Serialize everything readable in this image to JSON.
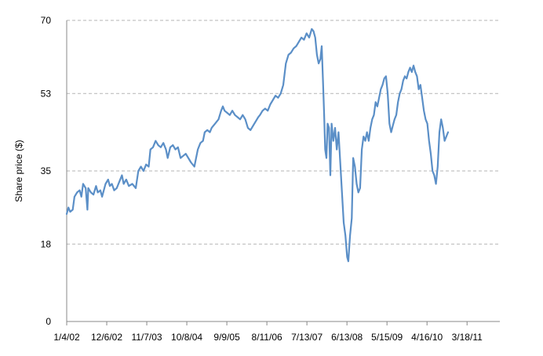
{
  "chart_data": {
    "type": "line",
    "title": "",
    "xlabel": "",
    "ylabel": "Share price ($)",
    "ylim": [
      0,
      70
    ],
    "y_ticks": [
      0,
      18,
      35,
      53,
      70
    ],
    "x_range": [
      0,
      2510
    ],
    "x_ticks": [
      {
        "x": 0,
        "label": "1/4/02"
      },
      {
        "x": 232,
        "label": "12/6/02"
      },
      {
        "x": 464,
        "label": "11/7/03"
      },
      {
        "x": 696,
        "label": "10/8/04"
      },
      {
        "x": 928,
        "label": "9/9/05"
      },
      {
        "x": 1160,
        "label": "8/11/06"
      },
      {
        "x": 1392,
        "label": "7/13/07"
      },
      {
        "x": 1624,
        "label": "6/13/08"
      },
      {
        "x": 1856,
        "label": "5/15/09"
      },
      {
        "x": 2088,
        "label": "4/16/10"
      },
      {
        "x": 2320,
        "label": "3/18/11"
      }
    ],
    "grid": "horizontal dashed",
    "legend": "none",
    "series": [
      {
        "color": "#5b8fc7",
        "points": [
          [
            0,
            25
          ],
          [
            10,
            26.5
          ],
          [
            20,
            25.5
          ],
          [
            35,
            26
          ],
          [
            45,
            29
          ],
          [
            60,
            30
          ],
          [
            75,
            30.5
          ],
          [
            85,
            29
          ],
          [
            95,
            32
          ],
          [
            110,
            31
          ],
          [
            120,
            26
          ],
          [
            125,
            31
          ],
          [
            140,
            30
          ],
          [
            155,
            29.5
          ],
          [
            170,
            31.5
          ],
          [
            180,
            30
          ],
          [
            195,
            30.5
          ],
          [
            205,
            29
          ],
          [
            225,
            32
          ],
          [
            240,
            33
          ],
          [
            250,
            31.5
          ],
          [
            262,
            32
          ],
          [
            275,
            30.5
          ],
          [
            290,
            31
          ],
          [
            305,
            32.5
          ],
          [
            320,
            34
          ],
          [
            330,
            32
          ],
          [
            345,
            33
          ],
          [
            360,
            31.5
          ],
          [
            380,
            32
          ],
          [
            400,
            31
          ],
          [
            415,
            35
          ],
          [
            430,
            36
          ],
          [
            445,
            35
          ],
          [
            460,
            36.5
          ],
          [
            475,
            36
          ],
          [
            485,
            40
          ],
          [
            500,
            40.5
          ],
          [
            515,
            42
          ],
          [
            530,
            41
          ],
          [
            545,
            40.5
          ],
          [
            560,
            41.5
          ],
          [
            575,
            40
          ],
          [
            585,
            38
          ],
          [
            600,
            40.5
          ],
          [
            615,
            41
          ],
          [
            630,
            40
          ],
          [
            645,
            40.5
          ],
          [
            660,
            38
          ],
          [
            675,
            38.5
          ],
          [
            690,
            39
          ],
          [
            705,
            38
          ],
          [
            720,
            37
          ],
          [
            740,
            36
          ],
          [
            750,
            38
          ],
          [
            760,
            40
          ],
          [
            775,
            41.5
          ],
          [
            790,
            42
          ],
          [
            800,
            44
          ],
          [
            815,
            44.5
          ],
          [
            830,
            44
          ],
          [
            840,
            45
          ],
          [
            860,
            46
          ],
          [
            880,
            47
          ],
          [
            895,
            49
          ],
          [
            905,
            50
          ],
          [
            915,
            49
          ],
          [
            930,
            48.5
          ],
          [
            945,
            48
          ],
          [
            960,
            49
          ],
          [
            975,
            48
          ],
          [
            990,
            47.5
          ],
          [
            1005,
            47
          ],
          [
            1020,
            48
          ],
          [
            1035,
            47
          ],
          [
            1050,
            45
          ],
          [
            1065,
            44.5
          ],
          [
            1080,
            45.5
          ],
          [
            1095,
            46.5
          ],
          [
            1110,
            47.5
          ],
          [
            1120,
            48
          ],
          [
            1135,
            49
          ],
          [
            1150,
            49.5
          ],
          [
            1165,
            49
          ],
          [
            1180,
            50.5
          ],
          [
            1195,
            51.5
          ],
          [
            1210,
            52.5
          ],
          [
            1225,
            52
          ],
          [
            1240,
            53
          ],
          [
            1255,
            55
          ],
          [
            1270,
            60
          ],
          [
            1285,
            62
          ],
          [
            1300,
            62.5
          ],
          [
            1315,
            63.5
          ],
          [
            1330,
            64
          ],
          [
            1345,
            65
          ],
          [
            1360,
            66
          ],
          [
            1375,
            65.5
          ],
          [
            1390,
            67
          ],
          [
            1405,
            66
          ],
          [
            1420,
            68
          ],
          [
            1430,
            67.5
          ],
          [
            1440,
            66
          ],
          [
            1450,
            62
          ],
          [
            1460,
            60
          ],
          [
            1470,
            61
          ],
          [
            1478,
            64
          ],
          [
            1485,
            56
          ],
          [
            1492,
            48
          ],
          [
            1498,
            40
          ],
          [
            1505,
            38
          ],
          [
            1512,
            46
          ],
          [
            1520,
            45
          ],
          [
            1528,
            34
          ],
          [
            1535,
            46
          ],
          [
            1545,
            42
          ],
          [
            1555,
            45
          ],
          [
            1565,
            40
          ],
          [
            1575,
            44
          ],
          [
            1585,
            37
          ],
          [
            1595,
            30
          ],
          [
            1605,
            23
          ],
          [
            1615,
            20
          ],
          [
            1625,
            15
          ],
          [
            1632,
            14
          ],
          [
            1642,
            20
          ],
          [
            1652,
            24
          ],
          [
            1660,
            38
          ],
          [
            1670,
            36
          ],
          [
            1680,
            32
          ],
          [
            1690,
            30
          ],
          [
            1700,
            31
          ],
          [
            1710,
            40
          ],
          [
            1720,
            43
          ],
          [
            1730,
            42
          ],
          [
            1740,
            44
          ],
          [
            1750,
            42
          ],
          [
            1760,
            45
          ],
          [
            1770,
            47
          ],
          [
            1780,
            48
          ],
          [
            1790,
            51
          ],
          [
            1800,
            50
          ],
          [
            1810,
            52
          ],
          [
            1820,
            54
          ],
          [
            1830,
            55
          ],
          [
            1840,
            56.5
          ],
          [
            1850,
            57
          ],
          [
            1860,
            53
          ],
          [
            1870,
            46
          ],
          [
            1880,
            44
          ],
          [
            1890,
            45.5
          ],
          [
            1900,
            47
          ],
          [
            1910,
            48
          ],
          [
            1920,
            51
          ],
          [
            1930,
            53
          ],
          [
            1940,
            54
          ],
          [
            1950,
            56
          ],
          [
            1960,
            57
          ],
          [
            1970,
            56.5
          ],
          [
            1980,
            58
          ],
          [
            1990,
            59
          ],
          [
            2000,
            58
          ],
          [
            2010,
            59.5
          ],
          [
            2020,
            58
          ],
          [
            2030,
            57
          ],
          [
            2040,
            54
          ],
          [
            2050,
            55
          ],
          [
            2060,
            52
          ],
          [
            2070,
            49
          ],
          [
            2080,
            47
          ],
          [
            2090,
            46
          ],
          [
            2100,
            42
          ],
          [
            2110,
            39
          ],
          [
            2120,
            35
          ],
          [
            2130,
            34
          ],
          [
            2140,
            32
          ],
          [
            2150,
            36
          ],
          [
            2160,
            44
          ],
          [
            2170,
            47
          ],
          [
            2180,
            45
          ],
          [
            2190,
            42
          ],
          [
            2200,
            43
          ],
          [
            2210,
            44
          ]
        ]
      }
    ]
  }
}
